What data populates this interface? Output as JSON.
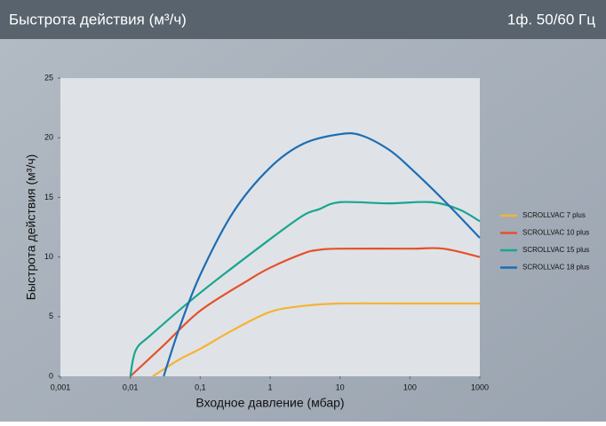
{
  "chart_data": {
    "type": "line",
    "title": "Быстрота действия (м³/ч)",
    "subtitle": "1ф. 50/60 Гц",
    "x_label": "Входное давление (мбар)",
    "y_label": "Быстрота действия (м³/ч)",
    "x_scale": "log",
    "xlim": [
      0.001,
      1000
    ],
    "xticks": [
      {
        "value": 0.001,
        "label": "0,001"
      },
      {
        "value": 0.01,
        "label": "0,01"
      },
      {
        "value": 0.1,
        "label": "0,1"
      },
      1,
      10,
      100,
      1000
    ],
    "ylim": [
      0,
      25
    ],
    "yticks": [
      0,
      5,
      10,
      15,
      20,
      25
    ],
    "grid": false,
    "legend": "right",
    "series": [
      {
        "name": "SCROLLVAC 7 plus",
        "color": "#f5b335",
        "x": [
          0.021,
          0.05,
          0.1,
          0.3,
          1,
          3,
          10,
          100,
          1000
        ],
        "values": [
          0,
          1.4,
          2.3,
          3.9,
          5.4,
          5.9,
          6.1,
          6.1,
          6.1
        ]
      },
      {
        "name": "SCROLLVAC 10 plus",
        "color": "#e5512b",
        "x": [
          0.01,
          0.03,
          0.1,
          0.5,
          1,
          3,
          5,
          10,
          100,
          300,
          1000
        ],
        "values": [
          0,
          2.6,
          5.5,
          8.1,
          9.1,
          10.3,
          10.6,
          10.7,
          10.7,
          10.7,
          10
        ]
      },
      {
        "name": "SCROLLVAC 15 plus",
        "color": "#1aa590",
        "x": [
          0.01,
          0.012,
          0.02,
          0.1,
          1,
          3,
          5,
          10,
          50,
          200,
          500,
          1000
        ],
        "values": [
          0,
          2.2,
          3.5,
          7,
          11.5,
          13.5,
          14,
          14.6,
          14.5,
          14.6,
          14,
          13
        ]
      },
      {
        "name": "SCROLLVAC 18 plus",
        "color": "#1e6db3",
        "x": [
          0.03,
          0.05,
          0.1,
          0.3,
          1,
          3,
          10,
          20,
          50,
          100,
          300,
          1000
        ],
        "values": [
          0,
          4,
          8.5,
          13.8,
          17.5,
          19.5,
          20.3,
          20.2,
          19,
          17.5,
          14.8,
          11.6
        ]
      }
    ]
  }
}
